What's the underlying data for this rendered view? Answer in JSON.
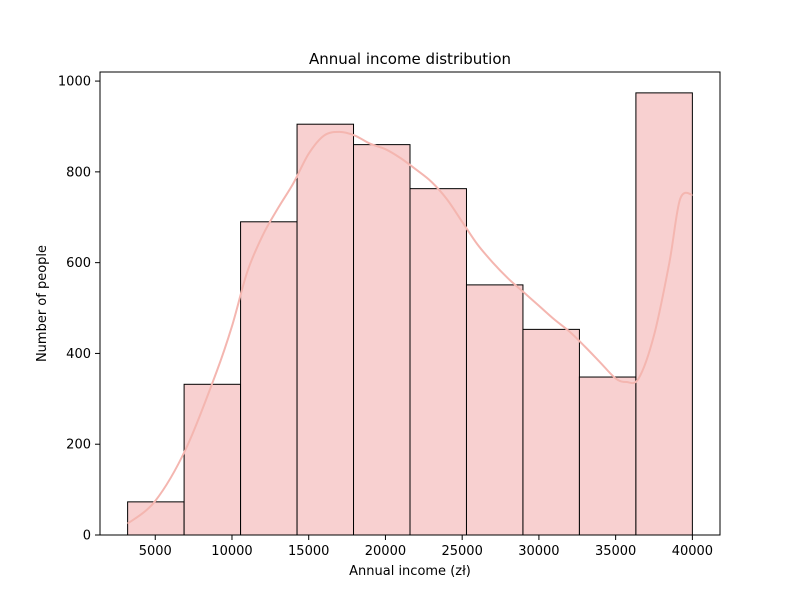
{
  "chart_data": {
    "type": "bar",
    "subtype": "histogram",
    "title": "Annual income distribution",
    "xlabel": "Annual income (zł)",
    "ylabel": "Number of people",
    "xlim": [
      1400,
      41800
    ],
    "ylim": [
      0,
      1020
    ],
    "x_ticks": [
      5000,
      10000,
      15000,
      20000,
      25000,
      30000,
      35000,
      40000
    ],
    "y_ticks": [
      0,
      200,
      400,
      600,
      800,
      1000
    ],
    "bins": [
      {
        "start": 3200,
        "end": 6880,
        "count": 73
      },
      {
        "start": 6880,
        "end": 10560,
        "count": 332
      },
      {
        "start": 10560,
        "end": 14240,
        "count": 690
      },
      {
        "start": 14240,
        "end": 17920,
        "count": 905
      },
      {
        "start": 17920,
        "end": 21600,
        "count": 860
      },
      {
        "start": 21600,
        "end": 25280,
        "count": 763
      },
      {
        "start": 25280,
        "end": 28960,
        "count": 551
      },
      {
        "start": 28960,
        "end": 32640,
        "count": 453
      },
      {
        "start": 32640,
        "end": 36320,
        "count": 348
      },
      {
        "start": 36320,
        "end": 40000,
        "count": 974
      }
    ],
    "kde": {
      "x": [
        3200,
        5000,
        7000,
        9000,
        10000,
        11000,
        12000,
        13000,
        14000,
        15000,
        16000,
        17000,
        18000,
        19000,
        20000,
        21000,
        22000,
        23000,
        24000,
        25000,
        26000,
        27000,
        28000,
        29000,
        30000,
        31000,
        32000,
        33000,
        34000,
        35000,
        35700,
        36500,
        37500,
        38500,
        39200,
        40000
      ],
      "y": [
        25,
        75,
        190,
        360,
        460,
        580,
        660,
        720,
        775,
        840,
        880,
        888,
        880,
        862,
        850,
        830,
        805,
        778,
        740,
        690,
        640,
        600,
        565,
        535,
        505,
        475,
        448,
        415,
        380,
        345,
        337,
        345,
        440,
        600,
        740,
        750
      ]
    },
    "colors": {
      "bar_fill": "#f8d0d0",
      "bar_edge": "#000000",
      "kde_line": "#f4b6b0"
    },
    "grid": false,
    "legend": "none"
  }
}
